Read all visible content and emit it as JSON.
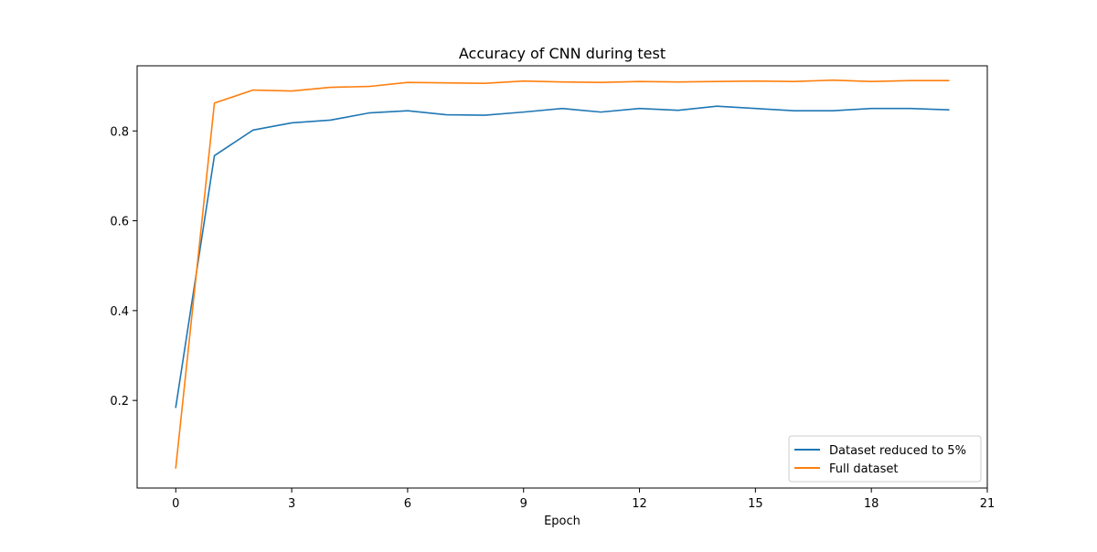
{
  "chart_data": {
    "type": "line",
    "title": "Accuracy of CNN during test",
    "xlabel": "Epoch",
    "ylabel": "",
    "xlim": [
      -1,
      21
    ],
    "ylim": [
      0.005,
      0.945
    ],
    "xticks": [
      0,
      3,
      6,
      9,
      12,
      15,
      18,
      21
    ],
    "xtick_labels": [
      "0",
      "3",
      "6",
      "9",
      "12",
      "15",
      "18",
      "21"
    ],
    "yticks": [
      0.2,
      0.4,
      0.6,
      0.8
    ],
    "ytick_labels": [
      "0.2",
      "0.4",
      "0.6",
      "0.8"
    ],
    "grid": false,
    "legend_position": "lower-right",
    "x": [
      0,
      1,
      2,
      3,
      4,
      5,
      6,
      7,
      8,
      9,
      10,
      11,
      12,
      13,
      14,
      15,
      16,
      17,
      18,
      19,
      20
    ],
    "series": [
      {
        "name": "Dataset reduced to 5%",
        "color": "#1f77b4",
        "values": [
          0.185,
          0.745,
          0.802,
          0.818,
          0.824,
          0.84,
          0.845,
          0.836,
          0.835,
          0.842,
          0.85,
          0.842,
          0.85,
          0.846,
          0.855,
          0.85,
          0.845,
          0.845,
          0.85,
          0.85,
          0.847
        ]
      },
      {
        "name": "Full dataset",
        "color": "#ff7f0e",
        "values": [
          0.05,
          0.862,
          0.891,
          0.889,
          0.897,
          0.899,
          0.908,
          0.907,
          0.906,
          0.911,
          0.909,
          0.908,
          0.91,
          0.909,
          0.91,
          0.911,
          0.91,
          0.913,
          0.91,
          0.912,
          0.912
        ]
      }
    ]
  }
}
